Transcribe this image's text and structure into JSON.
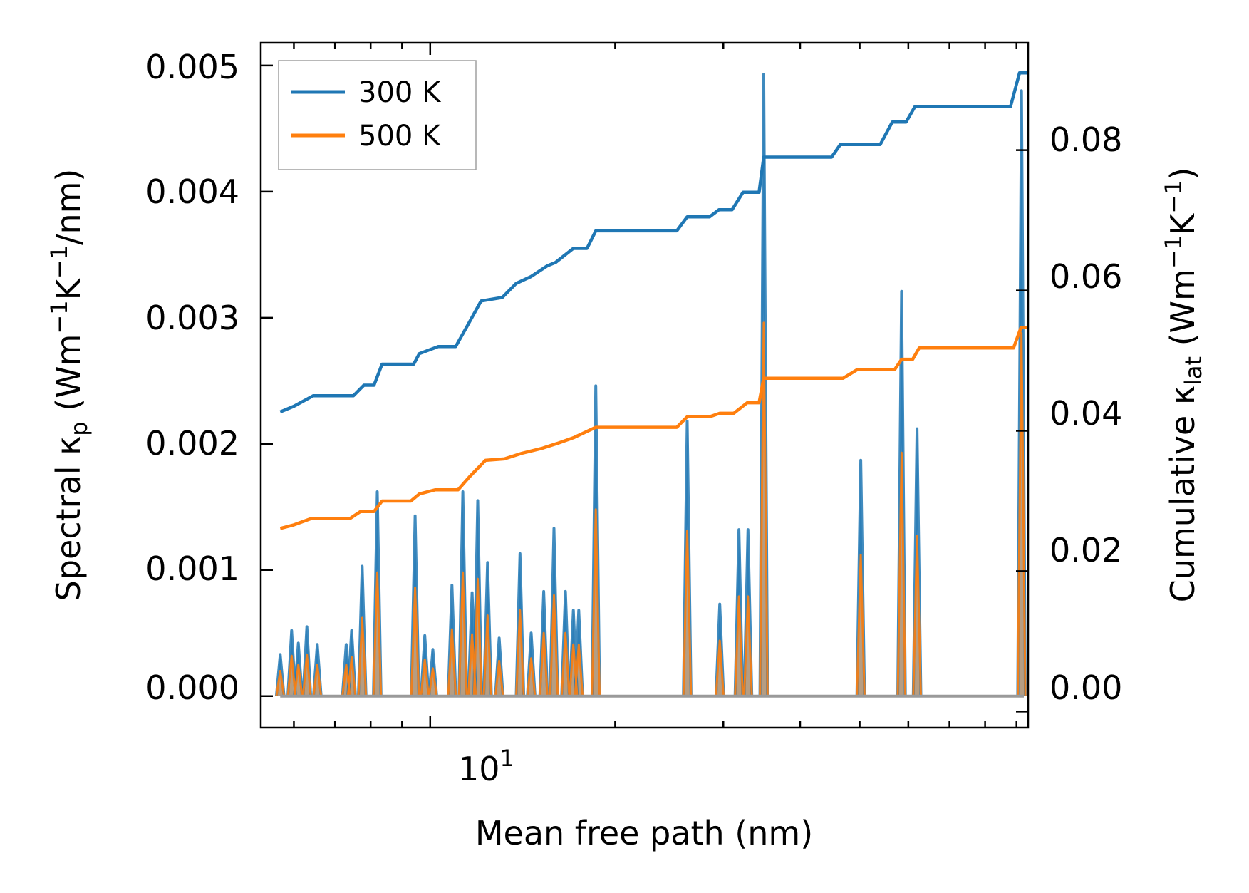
{
  "chart_data": {
    "type": "line",
    "title": "",
    "xlabel": "Mean free path (nm)",
    "ylabel_left": {
      "text": "Spectral κ",
      "sub": "p",
      "unit_open": " (Wm",
      "sup1": "−1",
      "unit_mid": "K",
      "sup2": "−1",
      "unit_close": "/nm)"
    },
    "ylabel_right": {
      "text": "Cumulative κ",
      "sub": "lat",
      "unit_open": " (Wm",
      "sup1": "−1",
      "unit_mid": "K",
      "sup2": "−1",
      "unit_close": ")"
    },
    "x_scale": "log",
    "xlim": [
      5.3,
      94
    ],
    "ylim_left": [
      -0.00025,
      0.00518
    ],
    "ylim_right": [
      -0.0023,
      0.0953
    ],
    "x_tick_label": {
      "base": "10",
      "exp": "1"
    },
    "y_ticks_left": [
      "0.000",
      "0.001",
      "0.002",
      "0.003",
      "0.004",
      "0.005"
    ],
    "y_ticks_right": [
      "0.00",
      "0.02",
      "0.04",
      "0.06",
      "0.08"
    ],
    "legend": {
      "position": "top-left",
      "entries": [
        "300 K",
        "500 K"
      ]
    },
    "colors": {
      "s300": "#1f77b4",
      "s500": "#ff7f0e",
      "fill300": "#5a8fc0",
      "fill500": "#c39a6e"
    },
    "spectral": {
      "series": [
        {
          "name": "300 K",
          "color": "#1f77b4",
          "peaks": [
            [
              5.7,
              0.00033
            ],
            [
              5.95,
              0.00052
            ],
            [
              6.1,
              0.00042
            ],
            [
              6.3,
              0.00055
            ],
            [
              6.55,
              0.00041
            ],
            [
              7.3,
              0.00041
            ],
            [
              7.45,
              0.00052
            ],
            [
              7.75,
              0.00103
            ],
            [
              8.2,
              0.00162
            ],
            [
              9.45,
              0.00143
            ],
            [
              9.8,
              0.00048
            ],
            [
              10.1,
              0.00037
            ],
            [
              10.85,
              0.00088
            ],
            [
              11.3,
              0.00162
            ],
            [
              11.7,
              0.00082
            ],
            [
              11.95,
              0.00155
            ],
            [
              12.4,
              0.00106
            ],
            [
              12.95,
              0.00046
            ],
            [
              14.0,
              0.00113
            ],
            [
              14.6,
              0.0005
            ],
            [
              15.3,
              0.00083
            ],
            [
              15.9,
              0.00133
            ],
            [
              16.6,
              0.00083
            ],
            [
              17.1,
              0.00068
            ],
            [
              17.45,
              0.00068
            ],
            [
              18.6,
              0.00246
            ],
            [
              26.2,
              0.00218
            ],
            [
              29.6,
              0.00073
            ],
            [
              31.8,
              0.00132
            ],
            [
              32.9,
              0.00132
            ],
            [
              34.9,
              0.00493
            ],
            [
              50.2,
              0.00187
            ],
            [
              58.5,
              0.00321
            ],
            [
              62.0,
              0.00212
            ],
            [
              91.7,
              0.0048
            ]
          ]
        },
        {
          "name": "500 K",
          "color": "#ff7f0e",
          "peaks": [
            [
              5.7,
              0.0002
            ],
            [
              5.95,
              0.00032
            ],
            [
              6.1,
              0.00025
            ],
            [
              6.3,
              0.00033
            ],
            [
              6.55,
              0.00025
            ],
            [
              7.3,
              0.00025
            ],
            [
              7.45,
              0.00031
            ],
            [
              7.75,
              0.00062
            ],
            [
              8.2,
              0.00098
            ],
            [
              9.45,
              0.00086
            ],
            [
              9.8,
              0.00029
            ],
            [
              10.1,
              0.00022
            ],
            [
              10.85,
              0.00053
            ],
            [
              11.3,
              0.00098
            ],
            [
              11.7,
              0.00049
            ],
            [
              11.95,
              0.00093
            ],
            [
              12.4,
              0.00064
            ],
            [
              12.95,
              0.00028
            ],
            [
              14.0,
              0.00068
            ],
            [
              14.6,
              0.0003
            ],
            [
              15.3,
              0.0005
            ],
            [
              15.9,
              0.0008
            ],
            [
              16.6,
              0.0005
            ],
            [
              17.1,
              0.00041
            ],
            [
              17.45,
              0.00041
            ],
            [
              18.6,
              0.00148
            ],
            [
              26.2,
              0.00131
            ],
            [
              29.6,
              0.00044
            ],
            [
              31.8,
              0.00079
            ],
            [
              32.9,
              0.00079
            ],
            [
              34.9,
              0.00296
            ],
            [
              50.2,
              0.00112
            ],
            [
              58.5,
              0.00193
            ],
            [
              62.0,
              0.00127
            ],
            [
              91.7,
              0.00288
            ]
          ]
        }
      ]
    },
    "cumulative": {
      "series": [
        {
          "name": "300 K",
          "color": "#1f77b4",
          "points": [
            [
              5.7,
              0.0427
            ],
            [
              6.0,
              0.0435
            ],
            [
              6.45,
              0.045
            ],
            [
              7.5,
              0.045
            ],
            [
              7.8,
              0.0465
            ],
            [
              8.1,
              0.0465
            ],
            [
              8.35,
              0.0495
            ],
            [
              9.4,
              0.0495
            ],
            [
              9.6,
              0.051
            ],
            [
              10.3,
              0.052
            ],
            [
              11.0,
              0.052
            ],
            [
              11.5,
              0.055
            ],
            [
              12.1,
              0.0585
            ],
            [
              13.1,
              0.059
            ],
            [
              13.8,
              0.061
            ],
            [
              14.6,
              0.062
            ],
            [
              15.5,
              0.0635
            ],
            [
              16.0,
              0.064
            ],
            [
              17.1,
              0.066
            ],
            [
              18.0,
              0.066
            ],
            [
              18.6,
              0.0685
            ],
            [
              25.2,
              0.0685
            ],
            [
              26.2,
              0.0705
            ],
            [
              28.5,
              0.0705
            ],
            [
              29.5,
              0.0715
            ],
            [
              31.0,
              0.0715
            ],
            [
              32.3,
              0.074
            ],
            [
              34.3,
              0.074
            ],
            [
              34.9,
              0.079
            ],
            [
              45.0,
              0.079
            ],
            [
              46.5,
              0.0808
            ],
            [
              54.0,
              0.0808
            ],
            [
              56.5,
              0.084
            ],
            [
              59.5,
              0.084
            ],
            [
              61.5,
              0.0862
            ],
            [
              88.0,
              0.0862
            ],
            [
              91.0,
              0.091
            ],
            [
              94.0,
              0.091
            ]
          ]
        },
        {
          "name": "500 K",
          "color": "#ff7f0e",
          "points": [
            [
              5.7,
              0.0261
            ],
            [
              6.0,
              0.0266
            ],
            [
              6.4,
              0.0275
            ],
            [
              7.4,
              0.0275
            ],
            [
              7.7,
              0.0285
            ],
            [
              8.1,
              0.0285
            ],
            [
              8.35,
              0.03
            ],
            [
              9.3,
              0.03
            ],
            [
              9.6,
              0.031
            ],
            [
              10.2,
              0.0316
            ],
            [
              11.1,
              0.0316
            ],
            [
              11.6,
              0.0335
            ],
            [
              12.3,
              0.0358
            ],
            [
              13.2,
              0.036
            ],
            [
              14.1,
              0.0368
            ],
            [
              15.2,
              0.0375
            ],
            [
              16.1,
              0.0382
            ],
            [
              17.1,
              0.039
            ],
            [
              18.6,
              0.0405
            ],
            [
              25.2,
              0.0405
            ],
            [
              26.2,
              0.042
            ],
            [
              28.5,
              0.042
            ],
            [
              29.6,
              0.0425
            ],
            [
              31.2,
              0.0425
            ],
            [
              32.8,
              0.044
            ],
            [
              34.3,
              0.044
            ],
            [
              34.9,
              0.0475
            ],
            [
              47.0,
              0.0475
            ],
            [
              49.5,
              0.0487
            ],
            [
              57.0,
              0.0487
            ],
            [
              58.5,
              0.0502
            ],
            [
              61.0,
              0.0502
            ],
            [
              62.5,
              0.0518
            ],
            [
              89.0,
              0.0518
            ],
            [
              91.5,
              0.0547
            ],
            [
              94.0,
              0.0547
            ]
          ]
        }
      ]
    }
  }
}
